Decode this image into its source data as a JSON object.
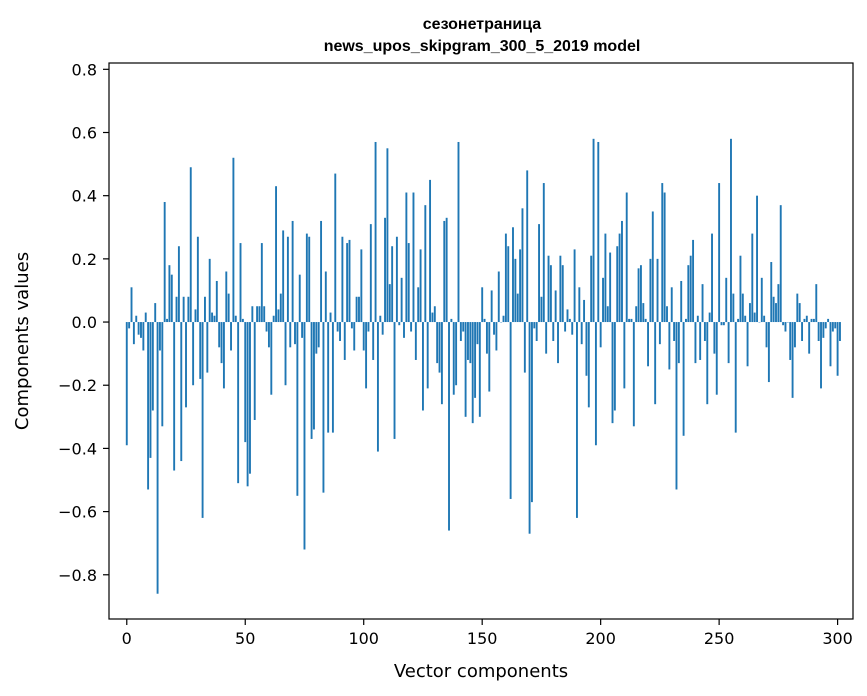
{
  "chart_data": {
    "type": "bar",
    "title": "сезонетраница",
    "subtitle": "news_upos_skipgram_300_5_2019 model",
    "xlabel": "Vector components",
    "ylabel": "Components values",
    "xlim": [
      -7.5,
      306.5
    ],
    "ylim": [
      -0.94,
      0.82
    ],
    "xticks": [
      0,
      50,
      100,
      150,
      200,
      250,
      300
    ],
    "xtick_labels": [
      "0",
      "50",
      "100",
      "150",
      "200",
      "250",
      "300"
    ],
    "yticks": [
      -0.8,
      -0.6,
      -0.4,
      -0.2,
      0.0,
      0.2,
      0.4,
      0.6,
      0.8
    ],
    "ytick_labels": [
      "−0.8",
      "−0.6",
      "−0.4",
      "−0.2",
      "0.0",
      "0.2",
      "0.4",
      "0.6",
      "0.8"
    ],
    "bar_color": "#1f77b4",
    "grid": false,
    "x": "0..299",
    "values": [
      -0.39,
      -0.02,
      0.11,
      -0.07,
      0.02,
      -0.04,
      -0.05,
      -0.09,
      0.03,
      -0.53,
      -0.43,
      -0.28,
      0.06,
      -0.86,
      -0.09,
      -0.33,
      0.38,
      0.01,
      0.18,
      0.15,
      -0.47,
      0.08,
      0.24,
      -0.44,
      0.08,
      -0.27,
      0.08,
      0.49,
      -0.2,
      0.04,
      0.27,
      -0.18,
      -0.62,
      0.08,
      -0.16,
      0.2,
      0.03,
      0.02,
      0.13,
      -0.08,
      -0.13,
      -0.21,
      0.16,
      0.09,
      -0.09,
      0.52,
      0.02,
      -0.51,
      0.25,
      0.01,
      -0.38,
      -0.52,
      -0.48,
      0.05,
      -0.31,
      0.05,
      0.05,
      0.25,
      0.05,
      -0.03,
      -0.08,
      -0.23,
      0.02,
      0.43,
      0.04,
      0.09,
      0.29,
      -0.2,
      0.27,
      -0.08,
      0.32,
      -0.07,
      -0.55,
      0.15,
      -0.05,
      -0.72,
      0.28,
      0.27,
      -0.37,
      -0.34,
      -0.1,
      -0.08,
      0.32,
      -0.54,
      0.16,
      -0.35,
      0.03,
      -0.35,
      0.47,
      -0.03,
      -0.06,
      0.27,
      -0.12,
      0.25,
      0.26,
      -0.02,
      -0.09,
      0.08,
      0.08,
      0.23,
      -0.09,
      -0.21,
      -0.03,
      0.31,
      -0.12,
      0.57,
      -0.41,
      0.02,
      -0.04,
      0.33,
      0.55,
      0.12,
      0.24,
      -0.37,
      0.27,
      -0.01,
      0.14,
      -0.05,
      0.41,
      0.25,
      -0.03,
      0.41,
      -0.12,
      0.11,
      0.23,
      -0.28,
      0.37,
      -0.21,
      0.45,
      0.03,
      0.05,
      -0.13,
      -0.16,
      -0.26,
      0.32,
      0.33,
      -0.66,
      0.01,
      -0.23,
      -0.2,
      0.57,
      -0.06,
      -0.03,
      -0.3,
      -0.12,
      -0.13,
      -0.32,
      -0.24,
      -0.07,
      -0.3,
      0.11,
      0.01,
      -0.1,
      -0.22,
      0.1,
      -0.04,
      -0.09,
      0.16,
      0.0,
      0.02,
      0.28,
      0.24,
      -0.56,
      0.3,
      0.2,
      0.09,
      0.23,
      0.36,
      -0.16,
      0.48,
      -0.67,
      -0.57,
      -0.02,
      -0.06,
      0.31,
      0.08,
      0.44,
      -0.1,
      0.21,
      0.18,
      -0.06,
      0.1,
      -0.13,
      0.21,
      0.18,
      -0.03,
      0.04,
      0.01,
      -0.04,
      0.23,
      -0.62,
      0.11,
      -0.07,
      0.07,
      -0.17,
      -0.27,
      0.21,
      0.58,
      -0.39,
      0.57,
      -0.08,
      0.14,
      0.28,
      0.05,
      0.22,
      -0.32,
      -0.28,
      0.24,
      0.28,
      0.32,
      -0.21,
      0.41,
      0.01,
      0.01,
      -0.33,
      0.05,
      0.17,
      0.18,
      0.06,
      0.01,
      -0.14,
      0.2,
      0.35,
      -0.26,
      0.2,
      -0.07,
      0.44,
      0.41,
      0.05,
      -0.15,
      0.11,
      -0.06,
      -0.53,
      -0.13,
      0.13,
      -0.36,
      0.01,
      0.18,
      0.21,
      0.26,
      -0.13,
      0.02,
      -0.12,
      0.12,
      -0.06,
      -0.26,
      0.03,
      0.28,
      -0.1,
      -0.23,
      0.44,
      -0.01,
      -0.01,
      0.14,
      -0.13,
      0.58,
      0.09,
      -0.35,
      0.01,
      0.21,
      0.09,
      0.02,
      -0.14,
      0.06,
      0.28,
      0.03,
      0.4,
      0.0,
      0.14,
      0.02,
      -0.08,
      -0.19,
      0.19,
      0.08,
      0.06,
      0.12,
      0.37,
      -0.01,
      -0.03,
      0.0,
      -0.12,
      -0.24,
      -0.08,
      0.09,
      0.06,
      -0.06,
      0.01,
      0.02,
      -0.1,
      0.01,
      0.01,
      0.12,
      -0.06,
      -0.21,
      -0.05,
      -0.02,
      0.01,
      -0.14,
      -0.03,
      -0.02,
      -0.17,
      -0.06
    ]
  }
}
